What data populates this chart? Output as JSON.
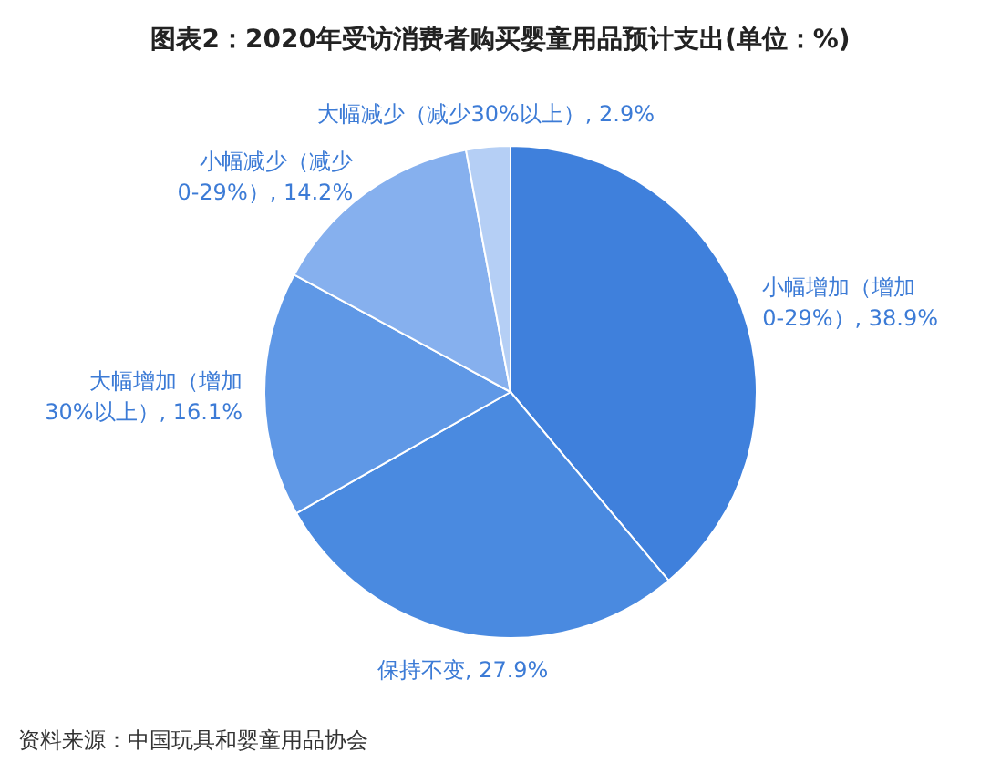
{
  "chart_data": {
    "type": "pie",
    "title": "图表2：2020年受访消费者购买婴童用品预计支出(单位：%)",
    "categories": [
      "小幅增加（增加0-29%）",
      "保持不变",
      "大幅增加（增加30%以上）",
      "小幅减少（减少0-29%）",
      "大幅减少（减少30%以上）"
    ],
    "values": [
      38.9,
      27.9,
      16.1,
      14.2,
      2.9
    ],
    "value_labels": [
      "38.9%",
      "27.9%",
      "16.1%",
      "14.2%",
      "2.9%"
    ],
    "colors": [
      "#3f80dc",
      "#4a8ae0",
      "#5f98e6",
      "#86b0ee",
      "#b5cff5"
    ],
    "annotations": [
      "资料来源：中国玩具和婴童用品协会"
    ]
  }
}
